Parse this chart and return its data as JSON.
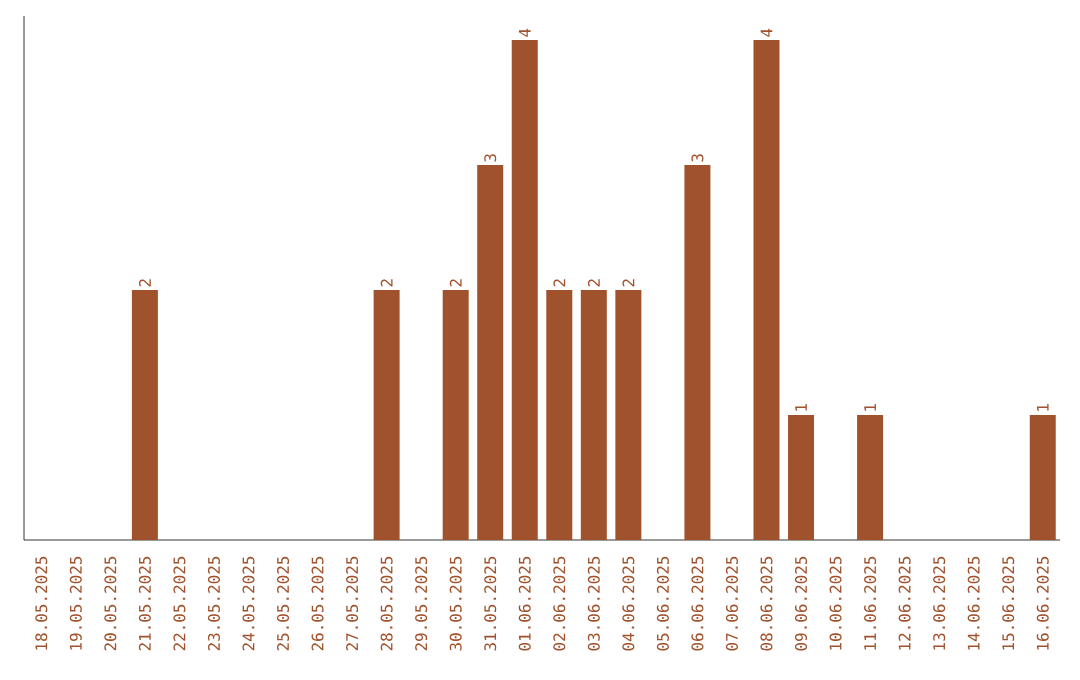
{
  "chart_data": {
    "type": "bar",
    "categories": [
      "18.05.2025",
      "19.05.2025",
      "20.05.2025",
      "21.05.2025",
      "22.05.2025",
      "23.05.2025",
      "24.05.2025",
      "25.05.2025",
      "26.05.2025",
      "27.05.2025",
      "28.05.2025",
      "29.05.2025",
      "30.05.2025",
      "31.05.2025",
      "01.06.2025",
      "02.06.2025",
      "03.06.2025",
      "04.06.2025",
      "05.06.2025",
      "06.06.2025",
      "07.06.2025",
      "08.06.2025",
      "09.06.2025",
      "10.06.2025",
      "11.06.2025",
      "12.06.2025",
      "13.06.2025",
      "14.06.2025",
      "15.06.2025",
      "16.06.2025"
    ],
    "values": [
      0,
      0,
      0,
      2,
      0,
      0,
      0,
      0,
      0,
      0,
      2,
      0,
      2,
      3,
      4,
      2,
      2,
      2,
      0,
      3,
      0,
      4,
      1,
      0,
      1,
      0,
      0,
      0,
      0,
      1
    ],
    "value_labels": [
      null,
      null,
      null,
      "2",
      null,
      null,
      null,
      null,
      null,
      null,
      "2",
      null,
      "2",
      "3",
      "4",
      "2",
      "2",
      "2",
      null,
      "3",
      null,
      "4",
      "1",
      null,
      "1",
      null,
      null,
      null,
      null,
      "1"
    ],
    "color": "#a0522d",
    "ylim": [
      0,
      4
    ],
    "tick_labels": "x",
    "grid": false
  }
}
